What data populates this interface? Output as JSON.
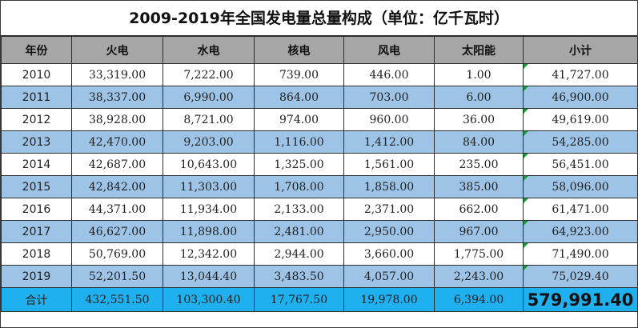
{
  "sheet": {
    "title": "2009-2019年全国发电量总量构成（单位：亿千瓦时）"
  },
  "table": {
    "headers": [
      "年份",
      "火电",
      "水电",
      "核电",
      "风电",
      "太阳能",
      "小计"
    ],
    "rows": [
      [
        "2010",
        "33,319.00",
        "7,222.00",
        "739.00",
        "446.00",
        "1.00",
        "41,727.00"
      ],
      [
        "2011",
        "38,337.00",
        "6,990.00",
        "864.00",
        "703.00",
        "6.00",
        "46,900.00"
      ],
      [
        "2012",
        "38,928.00",
        "8,721.00",
        "974.00",
        "960.00",
        "36.00",
        "49,619.00"
      ],
      [
        "2013",
        "42,470.00",
        "9,203.00",
        "1,116.00",
        "1,412.00",
        "84.00",
        "54,285.00"
      ],
      [
        "2014",
        "42,687.00",
        "10,643.00",
        "1,325.00",
        "1,561.00",
        "235.00",
        "56,451.00"
      ],
      [
        "2015",
        "42,842.00",
        "11,303.00",
        "1,708.00",
        "1,858.00",
        "385.00",
        "58,096.00"
      ],
      [
        "2016",
        "44,371.00",
        "11,934.00",
        "2,133.00",
        "2,371.00",
        "662.00",
        "61,471.00"
      ],
      [
        "2017",
        "46,627.00",
        "11,898.00",
        "2,481.00",
        "2,950.00",
        "967.00",
        "64,923.00"
      ],
      [
        "2018",
        "50,769.00",
        "12,342.00",
        "2,944.00",
        "3,660.00",
        "1,775.00",
        "71,490.00"
      ],
      [
        "2019",
        "52,201.50",
        "13,044.40",
        "3,483.50",
        "4,057.00",
        "2,243.00",
        "75,029.40"
      ]
    ],
    "total": [
      "合计",
      "432,551.50",
      "103,300.40",
      "17,767.50",
      "19,978.00",
      "6,394.00",
      "579,991.40"
    ]
  },
  "colors": {
    "header_bg": "#a6a6a6",
    "band_bg": "#9dc3e6",
    "total_bg": "#1fb0f0",
    "error_flag": "#1e9a3a"
  }
}
